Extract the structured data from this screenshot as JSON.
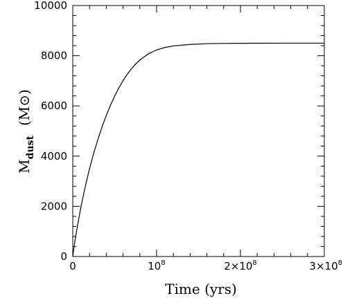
{
  "chart_data": {
    "type": "line",
    "xlabel": "Time  (yrs)",
    "ylabel": {
      "symbol": "M",
      "subscript": "dust",
      "unit": "(M⊙)"
    },
    "xlim": [
      0,
      300000000
    ],
    "ylim": [
      0,
      10000
    ],
    "x_ticks": [
      {
        "value": 0,
        "mantissa": "0",
        "exponent": ""
      },
      {
        "value": 100000000,
        "mantissa": "10",
        "exponent": "8"
      },
      {
        "value": 200000000,
        "mantissa": "2×10",
        "exponent": "8"
      },
      {
        "value": 300000000,
        "mantissa": "3×10",
        "exponent": "8"
      }
    ],
    "y_ticks": [
      {
        "value": 0,
        "label": "0"
      },
      {
        "value": 2000,
        "label": "2000"
      },
      {
        "value": 4000,
        "label": "4000"
      },
      {
        "value": 6000,
        "label": "6000"
      },
      {
        "value": 8000,
        "label": "8000"
      },
      {
        "value": 10000,
        "label": "10000"
      }
    ],
    "grid": false,
    "series": [
      {
        "x": [
          0,
          2000000,
          5000000,
          10000000,
          15000000,
          20000000,
          25000000,
          30000000,
          35000000,
          40000000,
          45000000,
          50000000,
          55000000,
          60000000,
          65000000,
          70000000,
          75000000,
          80000000,
          90000000,
          100000000,
          110000000,
          120000000,
          140000000,
          160000000,
          180000000,
          200000000,
          220000000,
          250000000,
          280000000,
          300000000
        ],
        "y": [
          0,
          500,
          1100,
          2020,
          2800,
          3500,
          4120,
          4670,
          5170,
          5620,
          6030,
          6390,
          6720,
          7010,
          7260,
          7480,
          7670,
          7830,
          8070,
          8230,
          8330,
          8390,
          8450,
          8480,
          8490,
          8495,
          8498,
          8500,
          8500,
          8500
        ]
      }
    ]
  }
}
